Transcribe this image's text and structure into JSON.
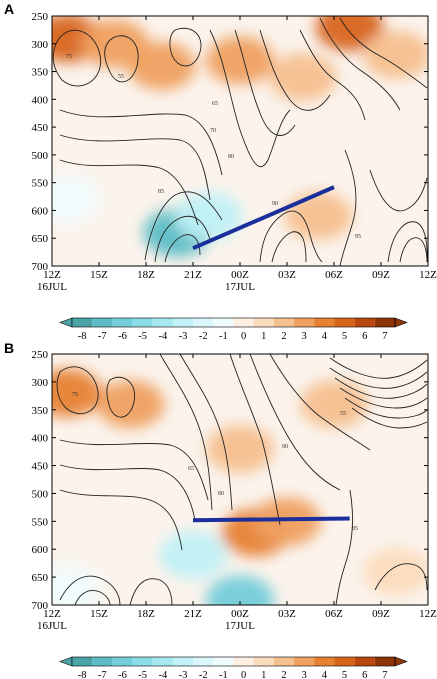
{
  "chart_data": [
    {
      "panel": "A",
      "type": "heatmap",
      "title": "",
      "xlabel": "",
      "ylabel": "",
      "x_ticks": [
        "12Z",
        "15Z",
        "18Z",
        "21Z",
        "00Z",
        "03Z",
        "06Z",
        "09Z",
        "12Z"
      ],
      "x_sublabels": [
        {
          "at": "12Z",
          "text": "16JUL"
        },
        {
          "at": "00Z",
          "text": "17JUL"
        }
      ],
      "y_ticks": [
        250,
        300,
        350,
        400,
        450,
        500,
        550,
        600,
        650,
        700
      ],
      "y_axis": "pressure, inverted (250 top, 700 bottom)",
      "ylim": [
        700,
        250
      ],
      "contour_labels": [
        "75",
        "55",
        "65",
        "70",
        "80",
        "85",
        "90",
        "95"
      ],
      "shaded_anomaly": [
        {
          "x": "13Z",
          "p": 290,
          "value": 5
        },
        {
          "x": "16Z",
          "p": 300,
          "value": 3
        },
        {
          "x": "19Z",
          "p": 340,
          "value": 3
        },
        {
          "x": "00Z",
          "p": 330,
          "value": 3
        },
        {
          "x": "04Z",
          "p": 360,
          "value": 2
        },
        {
          "x": "07Z",
          "p": 270,
          "value": 5
        },
        {
          "x": "10Z",
          "p": 320,
          "value": 2
        },
        {
          "x": "20Z",
          "p": 640,
          "value": -7
        },
        {
          "x": "22Z",
          "p": 610,
          "value": -3
        },
        {
          "x": "05Z",
          "p": 610,
          "value": 2
        },
        {
          "x": "13Z",
          "p": 580,
          "value": -1
        }
      ],
      "overlay_line": {
        "color": "#1a2f9c",
        "start": {
          "x": "21Z",
          "p": 668
        },
        "end": {
          "x": "06Z",
          "p": 558
        }
      }
    },
    {
      "panel": "B",
      "type": "heatmap",
      "title": "",
      "xlabel": "",
      "ylabel": "",
      "x_ticks": [
        "12Z",
        "15Z",
        "18Z",
        "21Z",
        "00Z",
        "03Z",
        "06Z",
        "09Z",
        "12Z"
      ],
      "x_sublabels": [
        {
          "at": "12Z",
          "text": "16JUL"
        },
        {
          "at": "00Z",
          "text": "17JUL"
        }
      ],
      "y_ticks": [
        250,
        300,
        350,
        400,
        450,
        500,
        550,
        600,
        650,
        700
      ],
      "y_axis": "pressure, inverted (250 top, 700 bottom)",
      "ylim": [
        700,
        250
      ],
      "contour_labels": [
        "75",
        "90",
        "65",
        "80",
        "55",
        "85"
      ],
      "shaded_anomaly": [
        {
          "x": "13Z",
          "p": 320,
          "value": 4
        },
        {
          "x": "17Z",
          "p": 340,
          "value": 3
        },
        {
          "x": "01Z",
          "p": 570,
          "value": 4
        },
        {
          "x": "03Z",
          "p": 550,
          "value": 3
        },
        {
          "x": "00Z",
          "p": 420,
          "value": 2
        },
        {
          "x": "06Z",
          "p": 340,
          "value": 2
        },
        {
          "x": "21Z",
          "p": 610,
          "value": -3
        },
        {
          "x": "00Z",
          "p": 690,
          "value": -6
        },
        {
          "x": "13Z",
          "p": 670,
          "value": -1
        },
        {
          "x": "10Z",
          "p": 640,
          "value": 1
        }
      ],
      "overlay_line": {
        "color": "#1a2f9c",
        "start": {
          "x": "21Z",
          "p": 548
        },
        "end": {
          "x": "07Z",
          "p": 545
        }
      }
    }
  ],
  "colorbar": {
    "ticks": [
      -8,
      -7,
      -6,
      -5,
      -4,
      -3,
      -2,
      -1,
      0,
      1,
      2,
      3,
      4,
      5,
      6,
      7
    ],
    "colors": [
      "#4aa3a6",
      "#5cbdc6",
      "#74cedb",
      "#8bdde8",
      "#a6e8f0",
      "#c0f1f6",
      "#daf7fb",
      "#f1fcfd",
      "#fdf0e3",
      "#fbdcbe",
      "#f6c08f",
      "#efa060",
      "#e68133",
      "#d8641c",
      "#b84810",
      "#8f3406"
    ],
    "extend": "both"
  },
  "panels": {
    "a": "A",
    "b": "B"
  }
}
